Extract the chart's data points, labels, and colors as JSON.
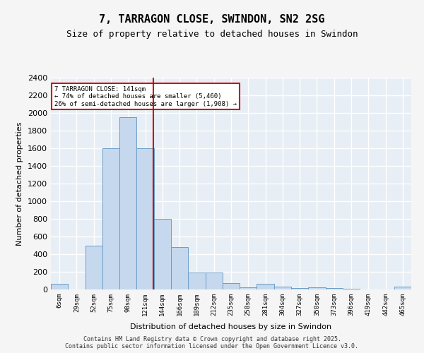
{
  "title1": "7, TARRAGON CLOSE, SWINDON, SN2 2SG",
  "title2": "Size of property relative to detached houses in Swindon",
  "xlabel": "Distribution of detached houses by size in Swindon",
  "ylabel": "Number of detached properties",
  "categories": [
    "6sqm",
    "29sqm",
    "52sqm",
    "75sqm",
    "98sqm",
    "121sqm",
    "144sqm",
    "166sqm",
    "189sqm",
    "212sqm",
    "235sqm",
    "258sqm",
    "281sqm",
    "304sqm",
    "327sqm",
    "350sqm",
    "373sqm",
    "396sqm",
    "419sqm",
    "442sqm",
    "465sqm"
  ],
  "values": [
    65,
    0,
    500,
    1600,
    1950,
    1600,
    800,
    480,
    195,
    190,
    70,
    25,
    65,
    30,
    20,
    25,
    15,
    5,
    0,
    0,
    35
  ],
  "bar_color": "#c5d8ed",
  "bar_edge_color": "#6a9dc8",
  "property_line_x": 141,
  "property_line_label": "7 TARRAGON CLOSE: 141sqm",
  "pct_smaller": 74,
  "n_smaller": 5460,
  "pct_larger_semi": 26,
  "n_larger_semi": 1908,
  "annotation_box_color": "#ffffff",
  "annotation_box_edge": "#cc0000",
  "vline_color": "#cc0000",
  "ylim": [
    0,
    2400
  ],
  "yticks": [
    0,
    200,
    400,
    600,
    800,
    1000,
    1200,
    1400,
    1600,
    1800,
    2000,
    2200,
    2400
  ],
  "bg_color": "#e8eef5",
  "grid_color": "#ffffff",
  "footer": "Contains HM Land Registry data © Crown copyright and database right 2025.\nContains public sector information licensed under the Open Government Licence v3.0.",
  "bar_width": 1.0,
  "bin_size": 23
}
